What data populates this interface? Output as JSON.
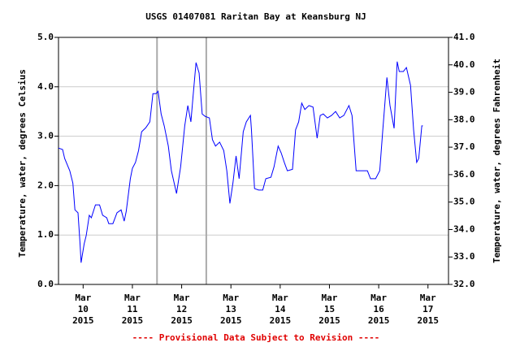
{
  "chart_data": {
    "type": "line",
    "title": "USGS 01407081 Raritan Bay at Keansburg NJ",
    "ylabel": "Temperature, water, degrees Celsius",
    "y2label": "Temperature, water, degrees Fahrenheit",
    "footer": "---- Provisional Data Subject to Revision ----",
    "grid": true,
    "x": [
      "2015-03-10 00:00",
      "2015-03-10 02:00",
      "2015-03-10 03:00",
      "2015-03-10 05:30",
      "2015-03-10 07:00",
      "2015-03-10 08:00",
      "2015-03-10 09:30",
      "2015-03-10 10:30",
      "2015-03-10 11:00",
      "2015-03-10 12:30",
      "2015-03-10 13:30",
      "2015-03-10 15:00",
      "2015-03-10 16:00",
      "2015-03-10 18:00",
      "2015-03-10 20:00",
      "2015-03-10 21:30",
      "2015-03-10 23:30",
      "2015-03-11 00:30",
      "2015-03-11 02:30",
      "2015-03-11 04:30",
      "2015-03-11 06:30",
      "2015-03-11 08:00",
      "2015-03-11 09:00",
      "2015-03-11 11:00",
      "2015-03-11 12:00",
      "2015-03-11 13:30",
      "2015-03-11 15:00",
      "2015-03-11 16:30",
      "2015-03-11 18:30",
      "2015-03-11 20:30",
      "2015-03-11 22:00",
      "2015-03-11 23:30",
      "2015-03-12 00:30",
      "2015-03-12 02:00",
      "2015-03-12 03:30",
      "2015-03-12 05:30",
      "2015-03-12 07:00",
      "2015-03-12 09:30",
      "2015-03-12 11:30",
      "2015-03-12 13:30",
      "2015-03-12 15:00",
      "2015-03-12 16:30",
      "2015-03-12 17:30",
      "2015-03-12 19:00",
      "2015-03-12 20:30",
      "2015-03-12 22:00",
      "2015-03-12 23:30",
      "2015-03-13 01:30",
      "2015-03-13 03:00",
      "2015-03-13 04:30",
      "2015-03-13 06:30",
      "2015-03-13 08:30",
      "2015-03-13 10:00",
      "2015-03-13 11:30",
      "2015-03-13 13:00",
      "2015-03-13 14:30",
      "2015-03-13 16:00",
      "2015-03-13 18:00",
      "2015-03-13 19:30",
      "2015-03-13 21:30",
      "2015-03-13 22:00",
      "2015-03-13 23:30",
      "2015-03-14 01:30",
      "2015-03-14 03:30",
      "2015-03-14 05:00",
      "2015-03-14 07:30",
      "2015-03-14 09:00",
      "2015-03-14 11:00",
      "2015-03-14 12:30",
      "2015-03-14 14:00",
      "2015-03-14 15:30",
      "2015-03-14 18:00",
      "2015-03-14 19:30",
      "2015-03-14 21:00",
      "2015-03-14 22:30",
      "2015-03-15 00:00",
      "2015-03-15 02:00",
      "2015-03-15 04:00",
      "2015-03-15 06:00",
      "2015-03-15 07:30",
      "2015-03-15 09:00",
      "2015-03-15 11:00",
      "2015-03-15 13:00",
      "2015-03-15 15:00",
      "2015-03-15 17:00",
      "2015-03-15 19:00",
      "2015-03-15 21:30",
      "2015-03-15 23:00",
      "2015-03-16 01:00",
      "2015-03-16 03:00",
      "2015-03-16 06:30",
      "2015-03-16 08:00",
      "2015-03-16 10:30",
      "2015-03-16 12:30",
      "2015-03-16 14:00",
      "2015-03-16 16:00",
      "2015-03-16 17:30",
      "2015-03-16 19:30",
      "2015-03-16 21:00",
      "2015-03-16 22:00",
      "2015-03-17 00:00",
      "2015-03-17 01:30",
      "2015-03-17 03:30",
      "2015-03-17 05:00",
      "2015-03-17 06:30",
      "2015-03-17 07:30",
      "2015-03-17 09:00",
      "2015-03-17 09:30"
    ],
    "series": [
      {
        "name": "Temperature, water",
        "color": "#0000ff",
        "values": [
          2.76,
          2.73,
          2.55,
          2.3,
          2.05,
          1.51,
          1.45,
          0.82,
          0.44,
          0.82,
          0.99,
          1.4,
          1.35,
          1.61,
          1.61,
          1.4,
          1.35,
          1.23,
          1.23,
          1.45,
          1.51,
          1.28,
          1.48,
          2.14,
          2.35,
          2.47,
          2.71,
          3.09,
          3.17,
          3.29,
          3.86,
          3.86,
          3.91,
          3.45,
          3.21,
          2.8,
          2.3,
          1.84,
          2.38,
          3.21,
          3.62,
          3.29,
          3.78,
          4.49,
          4.28,
          3.45,
          3.4,
          3.37,
          2.93,
          2.8,
          2.88,
          2.71,
          2.3,
          1.64,
          2.06,
          2.6,
          2.14,
          3.09,
          3.29,
          3.42,
          3.13,
          1.94,
          1.91,
          1.91,
          2.14,
          2.17,
          2.38,
          2.8,
          2.66,
          2.47,
          2.3,
          2.33,
          3.13,
          3.29,
          3.67,
          3.54,
          3.62,
          3.59,
          2.96,
          3.42,
          3.45,
          3.37,
          3.42,
          3.5,
          3.37,
          3.42,
          3.62,
          3.42,
          2.3,
          2.3,
          2.3,
          2.14,
          2.14,
          2.3,
          3.13,
          4.19,
          3.62,
          3.16,
          4.51,
          4.31,
          4.31,
          4.39,
          4.03,
          3.13,
          2.47,
          2.55,
          3.21,
          3.21
        ]
      }
    ],
    "xlim": [
      "2015-03-10 00:00",
      "2015-03-17 22:00"
    ],
    "xticks": [
      {
        "value": "2015-03-10 12:00",
        "label": "Mar 10 2015"
      },
      {
        "value": "2015-03-11 12:00",
        "label": "Mar 11 2015"
      },
      {
        "value": "2015-03-12 12:00",
        "label": "Mar 12 2015"
      },
      {
        "value": "2015-03-13 12:00",
        "label": "Mar 13 2015"
      },
      {
        "value": "2015-03-14 12:00",
        "label": "Mar 14 2015"
      },
      {
        "value": "2015-03-15 12:00",
        "label": "Mar 15 2015"
      },
      {
        "value": "2015-03-16 12:00",
        "label": "Mar 16 2015"
      },
      {
        "value": "2015-03-17 12:00",
        "label": "Mar 17 2015"
      }
    ],
    "xgrid": [
      "2015-03-12 00:00",
      "2015-03-13 00:00"
    ],
    "ylim": [
      0,
      5
    ],
    "yticks": [
      {
        "value": 0,
        "label": "0.0"
      },
      {
        "value": 1,
        "label": "1.0"
      },
      {
        "value": 2,
        "label": "2.0"
      },
      {
        "value": 3,
        "label": "3.0"
      },
      {
        "value": 4,
        "label": "4.0"
      },
      {
        "value": 5,
        "label": "5.0"
      }
    ],
    "y2lim": [
      32,
      41
    ],
    "y2ticks": [
      {
        "value": 32,
        "label": "32.0"
      },
      {
        "value": 33,
        "label": "33.0"
      },
      {
        "value": 34,
        "label": "34.0"
      },
      {
        "value": 35,
        "label": "35.0"
      },
      {
        "value": 36,
        "label": "36.0"
      },
      {
        "value": 37,
        "label": "37.0"
      },
      {
        "value": 38,
        "label": "38.0"
      },
      {
        "value": 39,
        "label": "39.0"
      },
      {
        "value": 40,
        "label": "40.0"
      },
      {
        "value": 41,
        "label": "41.0"
      }
    ]
  }
}
